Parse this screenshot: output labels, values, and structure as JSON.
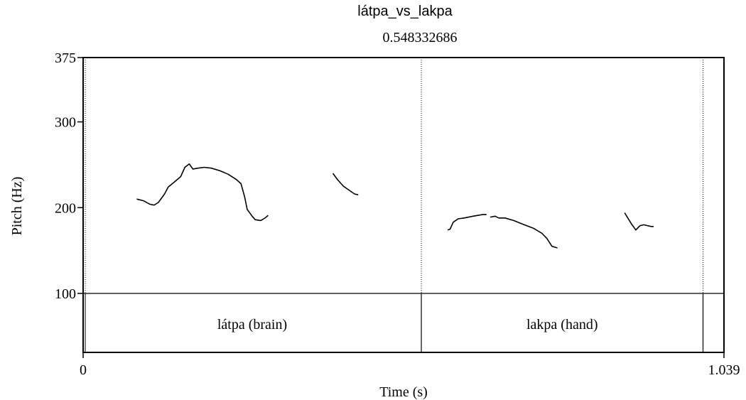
{
  "header": {
    "title": "látpa_vs_lakpa",
    "cursor_time": "0.548332686"
  },
  "chart_data": {
    "type": "line",
    "title": "látpa_vs_lakpa",
    "xlabel": "Time (s)",
    "ylabel": "Pitch (Hz)",
    "xlim": [
      0,
      1.039
    ],
    "ylim": [
      100,
      375
    ],
    "x_tick_labels": [
      "0",
      "1.039"
    ],
    "y_tick_labels": [
      "100",
      "200",
      "300",
      "375"
    ],
    "y_ticks": [
      100,
      200,
      300,
      375
    ],
    "cursor_x": 0.548332686,
    "boundaries": [
      0.548332686,
      1.005
    ],
    "tier": {
      "intervals": [
        {
          "label": "látpa (brain)",
          "start": 0,
          "end": 0.548332686
        },
        {
          "label": "lakpa (hand)",
          "start": 0.548332686,
          "end": 1.005
        }
      ]
    },
    "series": [
      {
        "segments": [
          [
            [
              0.087,
              210
            ],
            [
              0.098,
              208
            ],
            [
              0.108,
              204
            ],
            [
              0.115,
              203
            ],
            [
              0.122,
              206
            ],
            [
              0.132,
              216
            ],
            [
              0.138,
              224
            ],
            [
              0.148,
              230
            ],
            [
              0.158,
              236
            ],
            [
              0.165,
              247
            ],
            [
              0.172,
              251
            ],
            [
              0.178,
              245
            ],
            [
              0.186,
              246
            ],
            [
              0.196,
              247
            ],
            [
              0.208,
              246
            ],
            [
              0.222,
              243
            ],
            [
              0.235,
              239
            ],
            [
              0.248,
              233
            ],
            [
              0.256,
              228
            ],
            [
              0.262,
              212
            ],
            [
              0.266,
              198
            ],
            [
              0.274,
              190
            ],
            [
              0.279,
              186
            ],
            [
              0.288,
              185
            ],
            [
              0.295,
              188
            ],
            [
              0.3,
              191
            ]
          ],
          [
            [
              0.405,
              240
            ],
            [
              0.412,
              233
            ],
            [
              0.422,
              225
            ],
            [
              0.432,
              220
            ],
            [
              0.44,
              216
            ],
            [
              0.446,
              215
            ]
          ],
          [
            [
              0.591,
              174
            ],
            [
              0.595,
              175
            ],
            [
              0.6,
              183
            ],
            [
              0.608,
              187
            ],
            [
              0.618,
              188
            ],
            [
              0.632,
              190
            ],
            [
              0.648,
              192
            ],
            [
              0.654,
              192
            ]
          ],
          [
            [
              0.66,
              189
            ],
            [
              0.668,
              190
            ],
            [
              0.674,
              188
            ],
            [
              0.684,
              188
            ],
            [
              0.698,
              185
            ],
            [
              0.712,
              181
            ],
            [
              0.73,
              176
            ],
            [
              0.744,
              170
            ],
            [
              0.752,
              164
            ],
            [
              0.76,
              155
            ],
            [
              0.769,
              153
            ]
          ],
          [
            [
              0.878,
              194
            ],
            [
              0.883,
              188
            ],
            [
              0.89,
              180
            ],
            [
              0.896,
              174
            ],
            [
              0.903,
              179
            ],
            [
              0.909,
              180
            ],
            [
              0.915,
              179
            ],
            [
              0.921,
              178
            ],
            [
              0.925,
              178
            ]
          ]
        ]
      }
    ]
  }
}
